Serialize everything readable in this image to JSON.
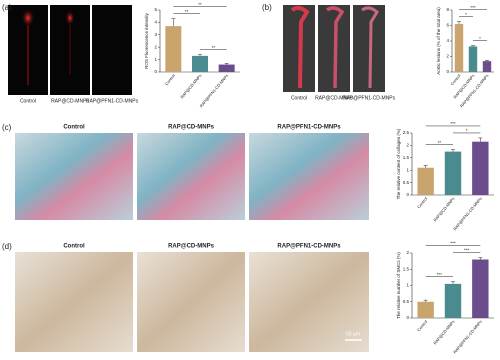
{
  "figure": {
    "panels": [
      {
        "label": "(a)",
        "images": [
          "Control",
          "RAP@CD-MNPs",
          "RAP@PFN1-CD-MNPs"
        ]
      },
      {
        "label": "(b)",
        "images": [
          "Control",
          "RAP@CD-MNPs",
          "RAP@PFN1-CD-MNPs"
        ]
      },
      {
        "label": "(c)",
        "images": [
          "Control",
          "RAP@CD-MNPs",
          "RAP@PFN1-CD-MNPs"
        ]
      },
      {
        "label": "(d)",
        "images": [
          "Control",
          "RAP@CD-MNPs",
          "RAP@PFN1-CD-MNPs"
        ]
      }
    ],
    "scale_bar": "50 μm"
  },
  "chart_data": [
    {
      "type": "bar",
      "ylabel": "ROS Fluorescence intensity",
      "categories": [
        "Control",
        "RAP@CD-MNPs",
        "RAP@PFN1-CD-MNPs"
      ],
      "values": [
        3.7,
        1.3,
        0.6
      ],
      "errors": [
        0.6,
        0.1,
        0.1
      ],
      "colors": [
        "#c9a46c",
        "#4a8b90",
        "#6b4c8c"
      ],
      "ylim": [
        0,
        5
      ],
      "yticks": [
        0,
        1,
        2,
        3,
        4,
        5
      ],
      "significance": [
        {
          "pair": [
            1,
            2
          ],
          "label": "**"
        },
        {
          "pair": [
            0,
            1
          ],
          "label": "**"
        },
        {
          "pair": [
            0,
            2
          ],
          "label": "**"
        }
      ]
    },
    {
      "type": "bar",
      "ylabel": "Aortic lesions (% of the total area)",
      "categories": [
        "Control",
        "RAP@CD-MNPs",
        "RAP@PFN1-CD-MNPs"
      ],
      "values": [
        6.2,
        3.3,
        1.4
      ],
      "errors": [
        0.3,
        0.1,
        0.1
      ],
      "colors": [
        "#c9a46c",
        "#4a8b90",
        "#6b4c8c"
      ],
      "ylim": [
        0,
        8
      ],
      "yticks": [
        0,
        2,
        4,
        6,
        8
      ],
      "significance": [
        {
          "pair": [
            1,
            2
          ],
          "label": "*"
        },
        {
          "pair": [
            0,
            1
          ],
          "label": "*"
        },
        {
          "pair": [
            0,
            2
          ],
          "label": "***"
        }
      ]
    },
    {
      "type": "bar",
      "ylabel": "The relative content of collagen (%)",
      "categories": [
        "Control",
        "RAP@CD-MNPs",
        "RAP@PFN1-CD-MNPs"
      ],
      "values": [
        1.1,
        1.75,
        2.15
      ],
      "errors": [
        0.1,
        0.08,
        0.15
      ],
      "colors": [
        "#c9a46c",
        "#4a8b90",
        "#6b4c8c"
      ],
      "ylim": [
        0,
        2.5
      ],
      "yticks": [
        0,
        0.5,
        1,
        1.5,
        2,
        2.5
      ],
      "significance": [
        {
          "pair": [
            0,
            1
          ],
          "label": "**"
        },
        {
          "pair": [
            1,
            2
          ],
          "label": "*"
        },
        {
          "pair": [
            0,
            2
          ],
          "label": "***"
        }
      ]
    },
    {
      "type": "bar",
      "ylabel": "The relative number of SMCs (%)",
      "categories": [
        "Control",
        "RAP@CD-MNPs",
        "RAP@PFN1-CD-MNPs"
      ],
      "values": [
        0.5,
        1.05,
        1.8
      ],
      "errors": [
        0.05,
        0.07,
        0.06
      ],
      "colors": [
        "#c9a46c",
        "#4a8b90",
        "#6b4c8c"
      ],
      "ylim": [
        0,
        2
      ],
      "yticks": [
        0,
        0.5,
        1,
        1.5,
        2
      ],
      "significance": [
        {
          "pair": [
            0,
            1
          ],
          "label": "***"
        },
        {
          "pair": [
            1,
            2
          ],
          "label": "***"
        },
        {
          "pair": [
            0,
            2
          ],
          "label": "***"
        }
      ]
    }
  ]
}
